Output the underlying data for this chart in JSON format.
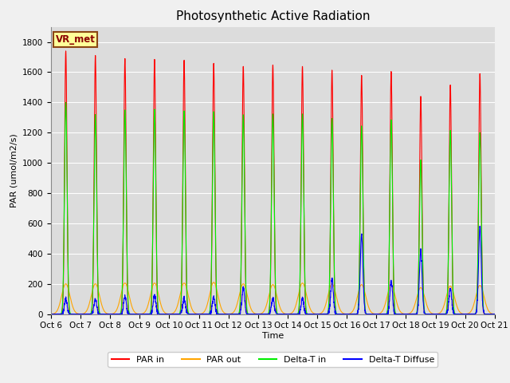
{
  "title": "Photosynthetic Active Radiation",
  "ylabel": "PAR (umol/m2/s)",
  "xlabel": "Time",
  "ylim": [
    0,
    1900
  ],
  "yticks": [
    0,
    200,
    400,
    600,
    800,
    1000,
    1200,
    1400,
    1600,
    1800
  ],
  "label_box_text": "VR_met",
  "legend_entries": [
    "PAR in",
    "PAR out",
    "Delta-T in",
    "Delta-T Diffuse"
  ],
  "colors": {
    "PAR_in": "#ff0000",
    "PAR_out": "#ffa500",
    "Delta_T_in": "#00ee00",
    "Delta_T_Diffuse": "#0000ff"
  },
  "num_days": 15,
  "day_peaks_PAR_in": [
    1740,
    1710,
    1690,
    1685,
    1680,
    1660,
    1640,
    1650,
    1640,
    1615,
    1580,
    1605,
    1440,
    1515,
    1590
  ],
  "day_peaks_PAR_out": [
    200,
    200,
    205,
    205,
    205,
    210,
    200,
    195,
    205,
    200,
    195,
    190,
    175,
    185,
    190
  ],
  "day_peaks_Delta_T_in": [
    1400,
    1320,
    1350,
    1355,
    1345,
    1340,
    1320,
    1325,
    1325,
    1295,
    1245,
    1285,
    1020,
    1215,
    1200
  ],
  "day_peaks_Delta_T_diffuse": [
    100,
    100,
    115,
    125,
    105,
    110,
    170,
    100,
    100,
    230,
    530,
    220,
    420,
    170,
    580
  ],
  "plot_bg": "#dcdcdc",
  "fig_bg": "#f0f0f0",
  "grid_color": "#ffffff",
  "title_fontsize": 11,
  "axis_label_fontsize": 8,
  "tick_fontsize": 7.5,
  "sigma_PAR_in": 0.04,
  "sigma_PAR_out": 0.14,
  "sigma_Delta_T_in": 0.045,
  "sigma_Delta_T_diffuse": 0.045,
  "samples_per_day": 200
}
